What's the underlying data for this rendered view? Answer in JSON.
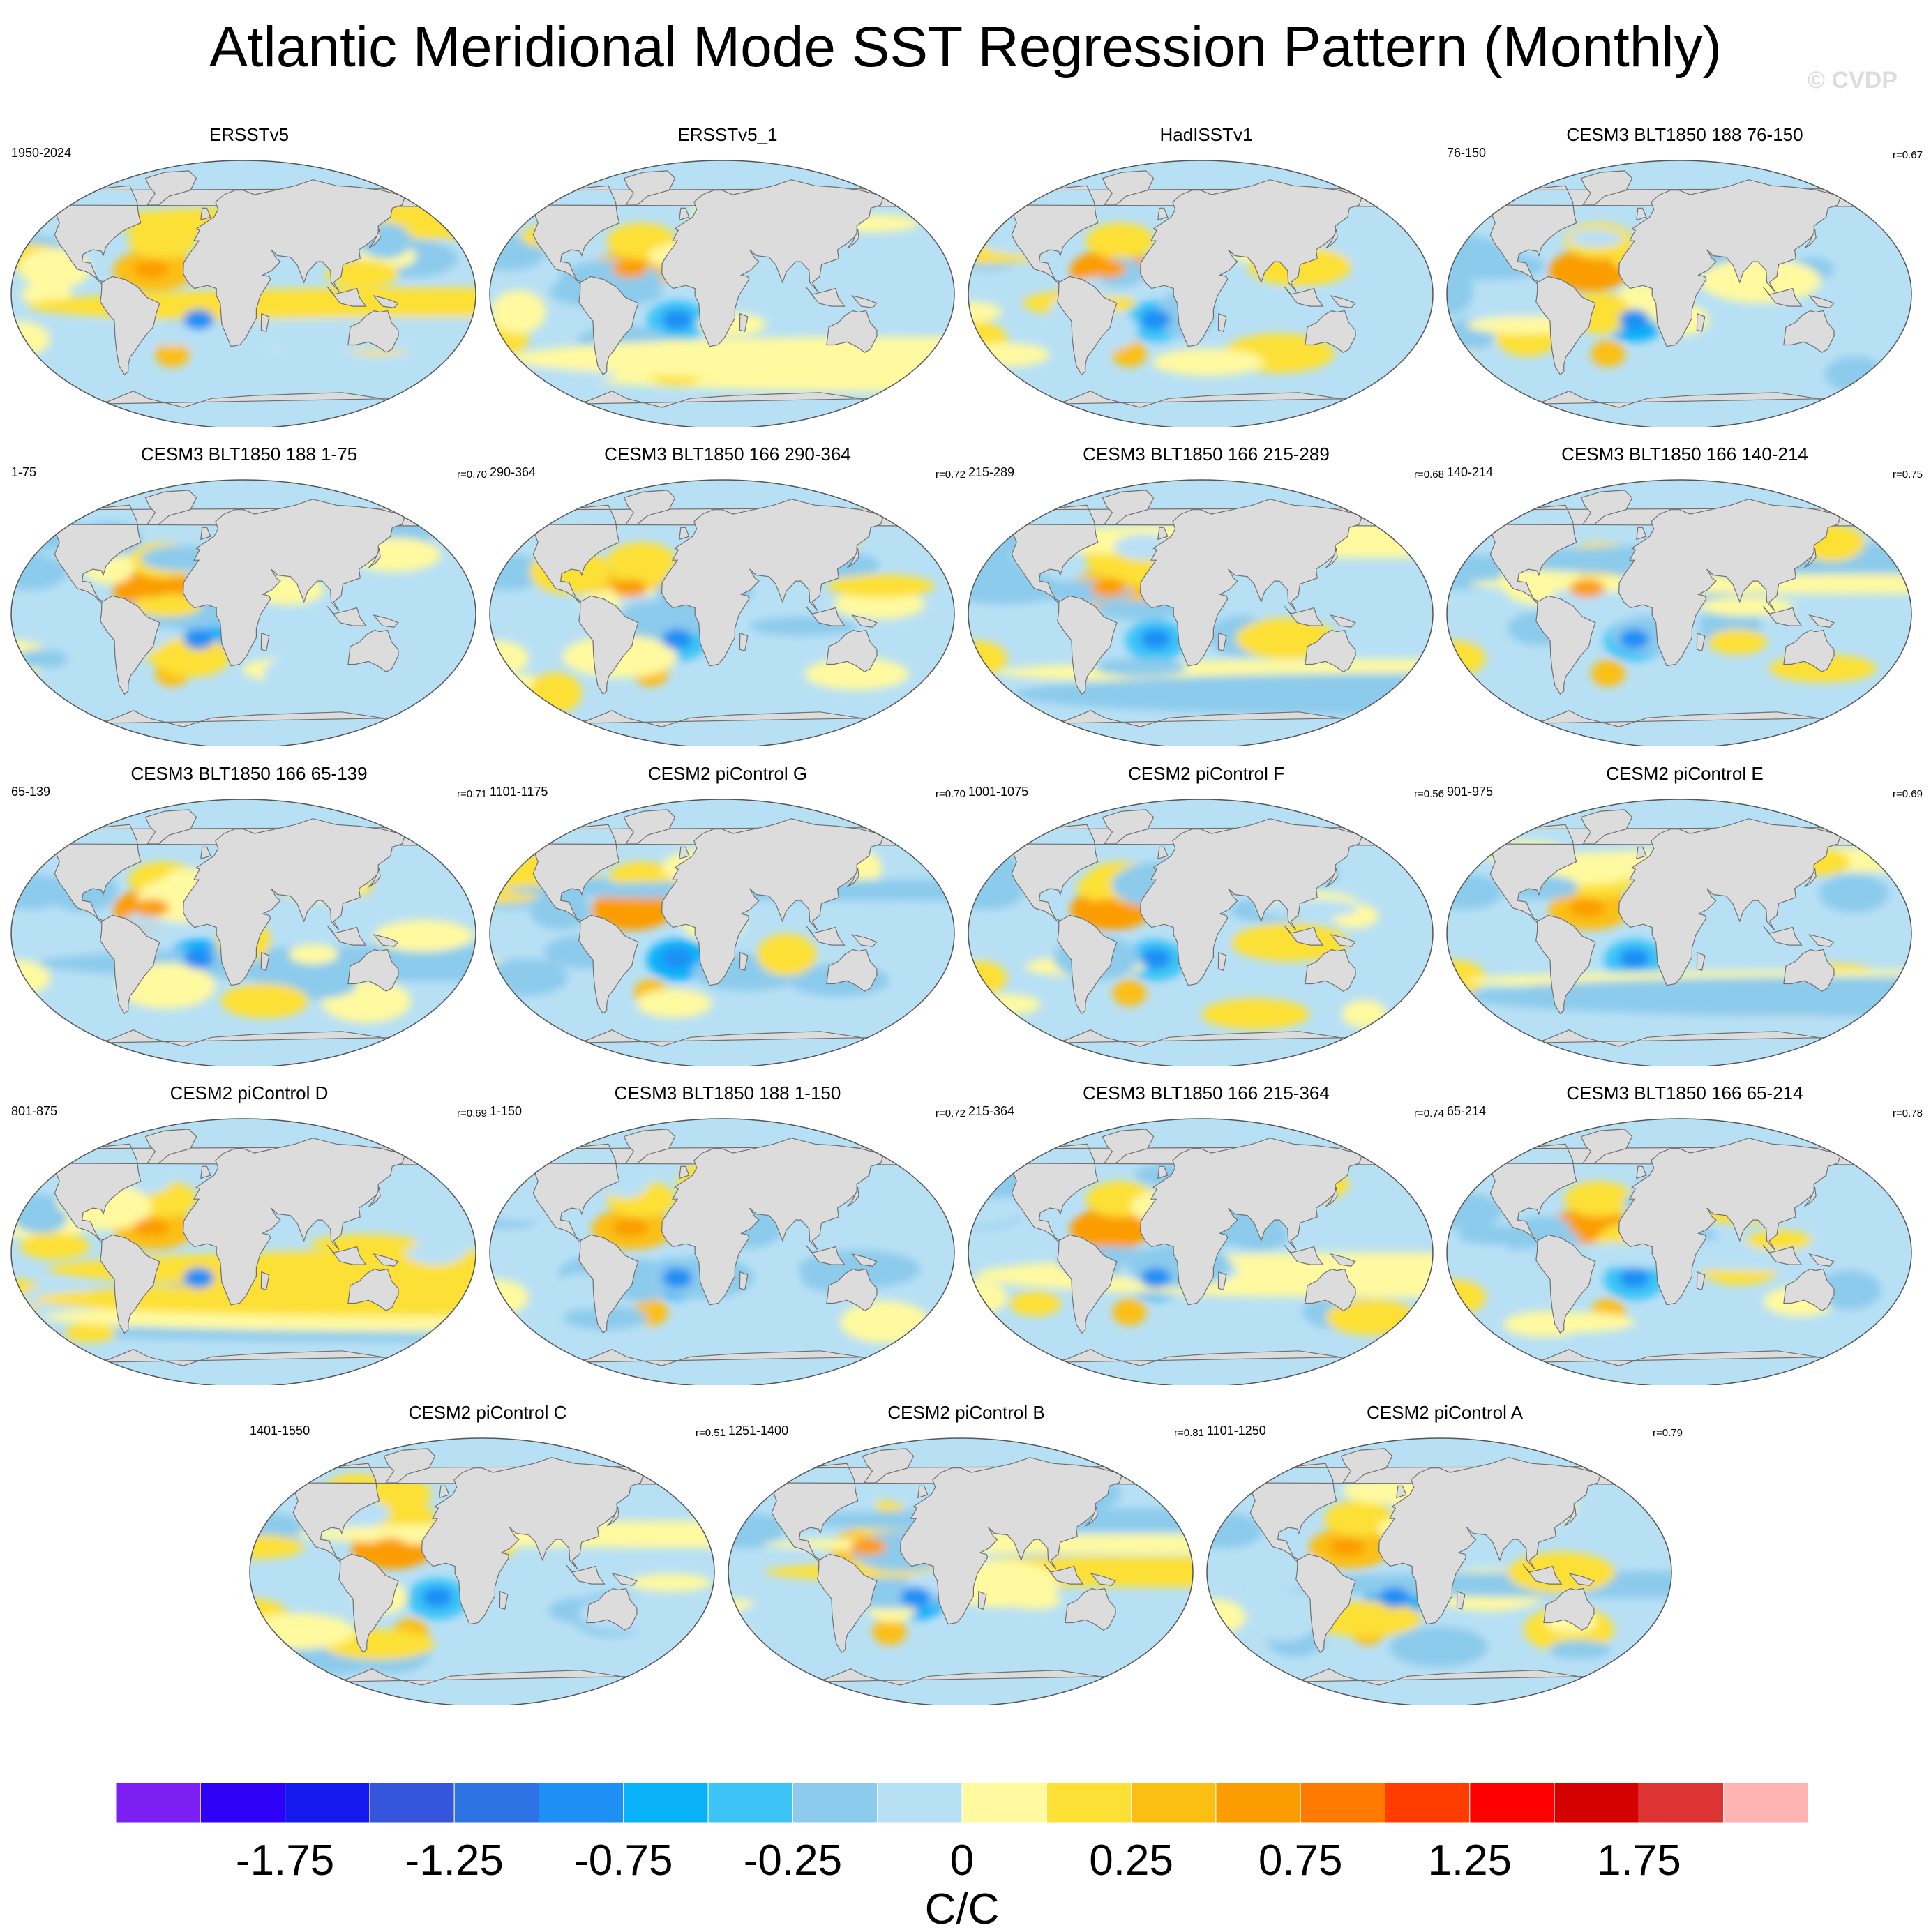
{
  "title": "Atlantic Meridional Mode SST Regression Pattern (Monthly)",
  "watermark": "© CVDP",
  "chart_data": {
    "type": "heatmap",
    "description_variable": "SST regression onto Atlantic Meridional Mode index",
    "projection": "Robinson (global)",
    "units": "C/C",
    "panels": [
      {
        "title": "ERSSTv5",
        "years": "1950-2024",
        "r": ""
      },
      {
        "title": "ERSSTv5_1",
        "years": "",
        "r": ""
      },
      {
        "title": "HadISSTv1",
        "years": "",
        "r": ""
      },
      {
        "title": "CESM3 BLT1850 188 76-150",
        "years": "76-150",
        "r": "r=0.67"
      },
      {
        "title": "CESM3 BLT1850 188 1-75",
        "years": "1-75",
        "r": "r=0.70"
      },
      {
        "title": "CESM3 BLT1850 166 290-364",
        "years": "290-364",
        "r": "r=0.72"
      },
      {
        "title": "CESM3 BLT1850 166 215-289",
        "years": "215-289",
        "r": "r=0.68"
      },
      {
        "title": "CESM3 BLT1850 166 140-214",
        "years": "140-214",
        "r": "r=0.75"
      },
      {
        "title": "CESM3 BLT1850 166 65-139",
        "years": "65-139",
        "r": "r=0.71"
      },
      {
        "title": "CESM2 piControl G",
        "years": "1101-1175",
        "r": "r=0.70"
      },
      {
        "title": "CESM2 piControl F",
        "years": "1001-1075",
        "r": "r=0.56"
      },
      {
        "title": "CESM2 piControl E",
        "years": "901-975",
        "r": "r=0.69"
      },
      {
        "title": "CESM2 piControl D",
        "years": "801-875",
        "r": "r=0.69"
      },
      {
        "title": "CESM3 BLT1850 188 1-150",
        "years": "1-150",
        "r": "r=0.72"
      },
      {
        "title": "CESM3 BLT1850 166 215-364",
        "years": "215-364",
        "r": "r=0.74"
      },
      {
        "title": "CESM3 BLT1850 166 65-214",
        "years": "65-214",
        "r": "r=0.78"
      },
      {
        "title": "CESM2 piControl C",
        "years": "1401-1550",
        "r": "r=0.51"
      },
      {
        "title": "CESM2 piControl B",
        "years": "1251-1400",
        "r": "r=0.81"
      },
      {
        "title": "CESM2 piControl A",
        "years": "1101-1250",
        "r": "r=0.79"
      }
    ],
    "colorbar": {
      "colors": [
        "#7b1ff2",
        "#2e00f5",
        "#1419ee",
        "#3556dc",
        "#2e73e6",
        "#1e8ff5",
        "#09b1f9",
        "#3cc4f7",
        "#8ccbec",
        "#b8e0f5",
        "#fff9a0",
        "#fde035",
        "#fbbf14",
        "#fb9d00",
        "#ff7a00",
        "#ff3d00",
        "#ff0000",
        "#d50000",
        "#dd3333",
        "#ffb3b3"
      ],
      "tick_labels": [
        "-1.75",
        "-1.25",
        "-0.75",
        "-0.25",
        "0",
        "0.25",
        "0.75",
        "1.25",
        "1.75"
      ],
      "tick_values": [
        -1.75,
        -1.25,
        -0.75,
        -0.25,
        0,
        0.25,
        0.75,
        1.25,
        1.75
      ],
      "label": "C/C"
    }
  }
}
